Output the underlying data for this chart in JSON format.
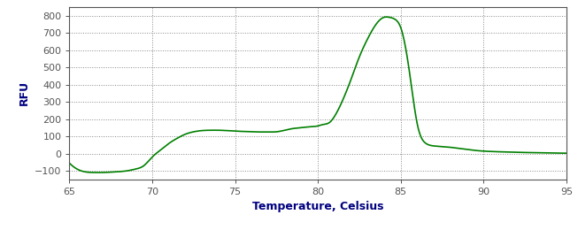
{
  "title": "",
  "xlabel": "Temperature, Celsius",
  "ylabel": "RFU",
  "xlim": [
    65,
    95
  ],
  "ylim": [
    -150,
    850
  ],
  "yticks": [
    -100,
    0,
    100,
    200,
    300,
    400,
    500,
    600,
    700,
    800
  ],
  "xticks": [
    65,
    70,
    75,
    80,
    85,
    90,
    95
  ],
  "line_color": "#008000",
  "background_color": "#ffffff",
  "tick_color": "#555555",
  "label_color": "#000080",
  "grid_color": "#808080",
  "spine_color": "#555555",
  "curve_points": {
    "x": [
      65.0,
      65.3,
      65.7,
      66.0,
      66.5,
      67.0,
      67.5,
      68.0,
      68.5,
      69.0,
      69.5,
      70.0,
      70.5,
      71.0,
      71.5,
      72.0,
      72.5,
      73.0,
      73.5,
      74.0,
      74.5,
      75.0,
      75.5,
      76.0,
      76.5,
      77.0,
      77.5,
      78.0,
      78.5,
      79.0,
      79.5,
      80.0,
      80.3,
      80.7,
      81.0,
      81.5,
      82.0,
      82.5,
      83.0,
      83.5,
      84.0,
      84.3,
      84.7,
      85.0,
      85.5,
      86.0,
      86.5,
      87.0,
      87.5,
      88.0,
      88.5,
      89.0,
      89.5,
      90.0,
      91.0,
      92.0,
      93.0,
      94.0,
      95.0
    ],
    "y": [
      -55,
      -80,
      -100,
      -107,
      -110,
      -110,
      -108,
      -105,
      -100,
      -90,
      -70,
      -20,
      20,
      58,
      88,
      112,
      126,
      133,
      135,
      135,
      133,
      130,
      128,
      126,
      125,
      125,
      126,
      135,
      145,
      150,
      155,
      160,
      168,
      180,
      215,
      310,
      430,
      560,
      665,
      748,
      790,
      790,
      775,
      730,
      490,
      170,
      60,
      44,
      40,
      36,
      30,
      24,
      18,
      14,
      10,
      7,
      5,
      3,
      2
    ]
  }
}
